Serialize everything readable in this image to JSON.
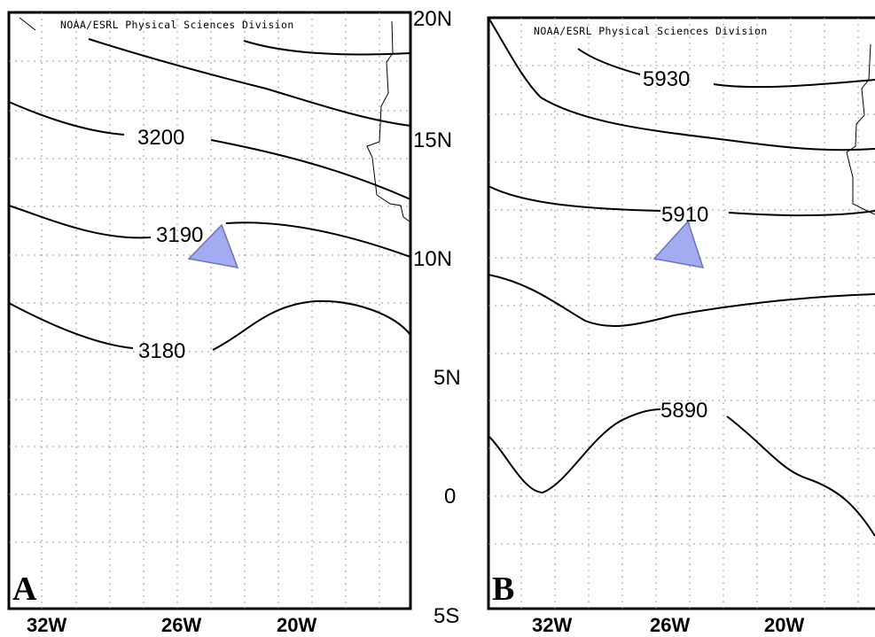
{
  "credit": "NOAA/ESRL Physical Sciences Division",
  "lat_labels": [
    "20N",
    "15N",
    "10N",
    "5N",
    "0",
    "5S"
  ],
  "lon_labels": [
    "32W",
    "26W",
    "20W"
  ],
  "panels": [
    {
      "letter": "A",
      "contour_labels": [
        "3200",
        "3190",
        "3180"
      ]
    },
    {
      "letter": "B",
      "contour_labels": [
        "5930",
        "5910",
        "5890"
      ]
    }
  ],
  "colors": {
    "marker": "#a3acf0",
    "marker_edge": "#6a72c0",
    "lines": "#000000",
    "grid": "#9a9a9a"
  }
}
